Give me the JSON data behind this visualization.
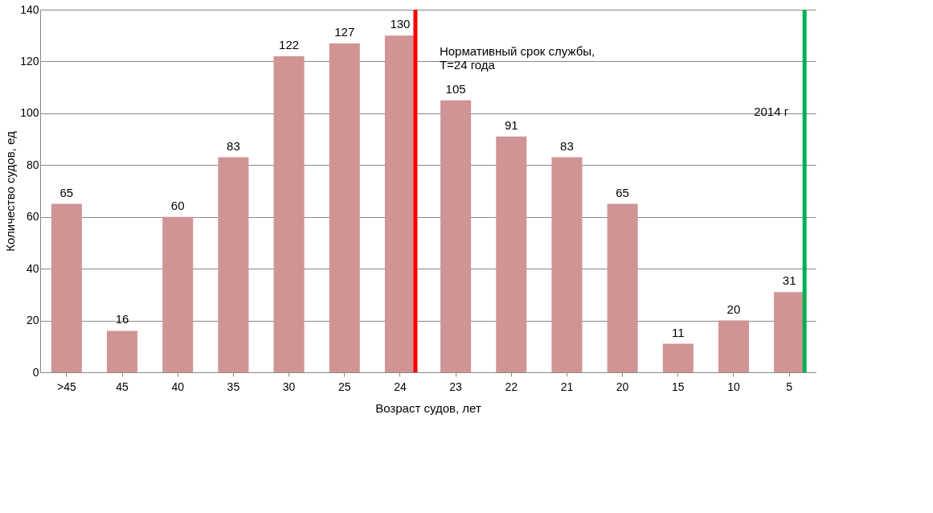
{
  "chart_data": {
    "type": "bar",
    "xlabel": "Возраст судов, лет",
    "ylabel": "Количество судов, ед",
    "categories": [
      ">45",
      "45",
      "40",
      "35",
      "30",
      "25",
      "24",
      "23",
      "22",
      "21",
      "20",
      "15",
      "10",
      "5"
    ],
    "values": [
      65,
      16,
      60,
      83,
      122,
      127,
      130,
      105,
      91,
      83,
      65,
      11,
      20,
      31
    ],
    "color": "#d09494",
    "ylim": [
      0,
      140
    ],
    "yticks": [
      0,
      20,
      40,
      60,
      80,
      100,
      120,
      140
    ],
    "grid": "y",
    "data_labels": true,
    "ref_lines": [
      {
        "axis": "x",
        "value": "24",
        "label": "Нормативный срок службы,\nT=24 года",
        "color": "#ff0000"
      },
      {
        "axis": "x",
        "value": "5",
        "label": "2014 г",
        "color": "#00b050"
      }
    ]
  }
}
